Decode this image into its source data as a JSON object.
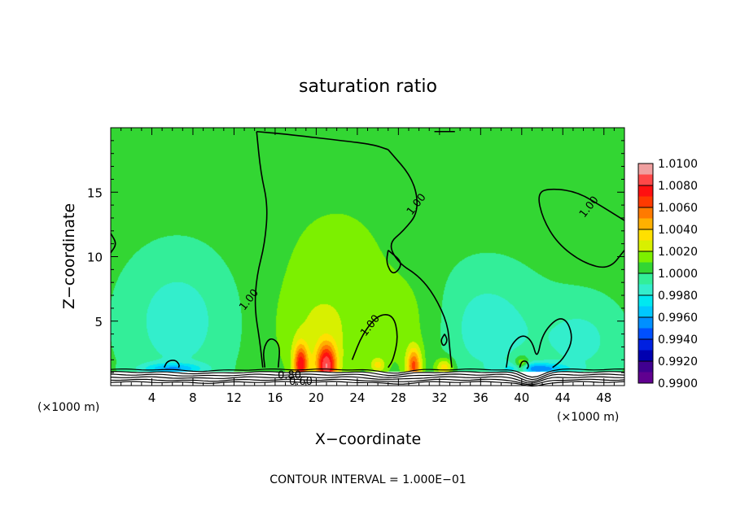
{
  "chart_data": {
    "type": "heatmap",
    "title": "saturation ratio",
    "xlabel": "X−coordinate",
    "ylabel": "Z−coordinate",
    "x_unit": "(×1000 m)",
    "y_unit": "(×1000 m)",
    "xlim": [
      0,
      50
    ],
    "ylim": [
      0,
      20
    ],
    "xticks": [
      "4",
      "8",
      "12",
      "16",
      "20",
      "24",
      "28",
      "32",
      "36",
      "40",
      "44",
      "48"
    ],
    "yticks": [
      "5",
      "10",
      "15"
    ],
    "contour_note": "CONTOUR INTERVAL = 1.000E−01",
    "colorbar": {
      "ticks": [
        "1.0100",
        "1.0080",
        "1.0060",
        "1.0040",
        "1.0020",
        "1.0000",
        "0.9980",
        "0.9960",
        "0.9940",
        "0.9920",
        "0.9900"
      ],
      "bands": [
        {
          "min": 1.009,
          "max": 1.01,
          "color": "#f0a0a0"
        },
        {
          "min": 1.008,
          "max": 1.009,
          "color": "#ff4848"
        },
        {
          "min": 1.007,
          "max": 1.008,
          "color": "#ff1010"
        },
        {
          "min": 1.006,
          "max": 1.007,
          "color": "#ff3a00"
        },
        {
          "min": 1.005,
          "max": 1.006,
          "color": "#ff7a00"
        },
        {
          "min": 1.004,
          "max": 1.005,
          "color": "#ffb000"
        },
        {
          "min": 1.003,
          "max": 1.004,
          "color": "#ffe000"
        },
        {
          "min": 1.002,
          "max": 1.003,
          "color": "#d8f000"
        },
        {
          "min": 1.001,
          "max": 1.002,
          "color": "#7cf000"
        },
        {
          "min": 1.0,
          "max": 1.001,
          "color": "#33d633"
        },
        {
          "min": 0.999,
          "max": 1.0,
          "color": "#33ee99"
        },
        {
          "min": 0.998,
          "max": 0.999,
          "color": "#33eecc"
        },
        {
          "min": 0.997,
          "max": 0.998,
          "color": "#00e8f0"
        },
        {
          "min": 0.996,
          "max": 0.997,
          "color": "#00c8ff"
        },
        {
          "min": 0.995,
          "max": 0.996,
          "color": "#0090ff"
        },
        {
          "min": 0.994,
          "max": 0.995,
          "color": "#0050ff"
        },
        {
          "min": 0.993,
          "max": 0.994,
          "color": "#0020e0"
        },
        {
          "min": 0.992,
          "max": 0.993,
          "color": "#0000b0"
        },
        {
          "min": 0.991,
          "max": 0.992,
          "color": "#400090"
        },
        {
          "min": 0.99,
          "max": 0.991,
          "color": "#600090"
        }
      ]
    },
    "background_value": 1.0005,
    "features": [
      {
        "x": 18.5,
        "z": 1.6,
        "sx": 0.5,
        "sz": 1.1,
        "value": 1.007
      },
      {
        "x": 21.0,
        "z": 1.5,
        "sx": 0.7,
        "sz": 1.2,
        "value": 1.008
      },
      {
        "x": 29.5,
        "z": 1.5,
        "sx": 0.5,
        "sz": 1.0,
        "value": 1.006
      },
      {
        "x": 32.5,
        "z": 1.4,
        "sx": 0.6,
        "sz": 0.5,
        "value": 1.004
      },
      {
        "x": 20.5,
        "z": 4.0,
        "sx": 3.0,
        "sz": 2.8,
        "value": 1.002
      },
      {
        "x": 29.5,
        "z": 4.5,
        "sx": 2.5,
        "sz": 3.0,
        "value": 1.0015
      },
      {
        "x": 22.0,
        "z": 10.0,
        "sx": 4.5,
        "sz": 4.0,
        "value": 1.0012
      },
      {
        "x": 26.0,
        "z": 1.6,
        "sx": 0.5,
        "sz": 0.4,
        "value": 1.003
      },
      {
        "x": 40.0,
        "z": 1.5,
        "sx": 0.5,
        "sz": 0.5,
        "value": 1.004
      },
      {
        "x": 6.5,
        "z": 5.0,
        "sx": 4.0,
        "sz": 4.0,
        "value": 0.9985
      },
      {
        "x": 36.5,
        "z": 4.5,
        "sx": 4.0,
        "sz": 3.5,
        "value": 0.9985
      },
      {
        "x": 46.0,
        "z": 3.5,
        "sx": 3.0,
        "sz": 2.5,
        "value": 0.9988
      },
      {
        "x": 6.0,
        "z": 1.3,
        "sx": 2.0,
        "sz": 0.3,
        "value": 0.997
      },
      {
        "x": 41.5,
        "z": 1.3,
        "sx": 2.0,
        "sz": 0.3,
        "value": 0.996
      }
    ],
    "contours": [
      {
        "label": "1.00",
        "label_pos": [
          13.7,
          6.5
        ],
        "points": [
          [
            14.8,
            1.4
          ],
          [
            14.5,
            3.5
          ],
          [
            14.0,
            6.0
          ],
          [
            14.2,
            8.5
          ],
          [
            15.0,
            11.0
          ],
          [
            15.3,
            14.0
          ],
          [
            14.6,
            16.5
          ],
          [
            14.2,
            19.7
          ]
        ]
      },
      {
        "label": "",
        "points": [
          [
            14.2,
            19.7
          ],
          [
            17.0,
            19.5
          ],
          [
            22.5,
            19.0
          ],
          [
            25.5,
            18.7
          ],
          [
            27.0,
            18.3
          ]
        ]
      },
      {
        "label": "1.00",
        "label_pos": [
          30.0,
          13.9
        ],
        "points": [
          [
            27.0,
            18.3
          ],
          [
            29.5,
            16.0
          ],
          [
            30.0,
            13.5
          ],
          [
            28.5,
            12.0
          ],
          [
            27.0,
            11.0
          ],
          [
            28.0,
            9.5
          ],
          [
            30.0,
            8.5
          ],
          [
            31.5,
            7.0
          ],
          [
            32.8,
            4.8
          ],
          [
            33.0,
            2.8
          ],
          [
            33.2,
            1.4
          ]
        ]
      },
      {
        "label": "",
        "points": [
          [
            31.5,
            19.7
          ],
          [
            33.5,
            19.7
          ]
        ]
      },
      {
        "label": "",
        "points": [
          [
            0.0,
            11.8
          ],
          [
            0.6,
            11.0
          ],
          [
            0.0,
            10.3
          ]
        ]
      },
      {
        "label": "1.00",
        "label_pos": [
          25.5,
          4.5
        ],
        "points": [
          [
            23.5,
            2.0
          ],
          [
            24.5,
            4.0
          ],
          [
            26.0,
            5.5
          ],
          [
            27.5,
            5.5
          ],
          [
            28.0,
            3.8
          ],
          [
            27.5,
            2.0
          ],
          [
            27.0,
            1.4
          ]
        ]
      },
      {
        "label": "",
        "points": [
          [
            27.0,
            10.5
          ],
          [
            28.5,
            9.5
          ],
          [
            27.5,
            8.5
          ],
          [
            26.8,
            9.5
          ],
          [
            27.0,
            10.5
          ]
        ]
      },
      {
        "label": "",
        "points": [
          [
            32.5,
            4.0
          ],
          [
            32.8,
            3.5
          ],
          [
            32.4,
            3.0
          ],
          [
            32.1,
            3.5
          ],
          [
            32.5,
            4.0
          ]
        ]
      },
      {
        "label": "",
        "points": [
          [
            15.0,
            1.4
          ],
          [
            14.8,
            2.8
          ],
          [
            15.5,
            3.8
          ],
          [
            16.5,
            3.2
          ],
          [
            16.3,
            1.4
          ]
        ]
      },
      {
        "label": "1.00",
        "label_pos": [
          46.8,
          13.7
        ],
        "points": [
          [
            50.0,
            10.5
          ],
          [
            48.5,
            9.0
          ],
          [
            46.0,
            9.5
          ],
          [
            43.5,
            11.0
          ],
          [
            42.0,
            13.0
          ],
          [
            41.5,
            15.0
          ],
          [
            43.0,
            15.3
          ],
          [
            45.5,
            15.0
          ],
          [
            48.0,
            13.8
          ],
          [
            50.0,
            12.8
          ]
        ]
      },
      {
        "label": "",
        "points": [
          [
            38.5,
            1.4
          ],
          [
            38.8,
            3.0
          ],
          [
            40.0,
            4.0
          ],
          [
            41.0,
            3.5
          ],
          [
            41.5,
            2.0
          ],
          [
            42.0,
            4.0
          ],
          [
            43.5,
            5.3
          ],
          [
            44.5,
            5.0
          ],
          [
            45.0,
            3.5
          ],
          [
            44.0,
            2.0
          ],
          [
            43.0,
            1.4
          ]
        ]
      },
      {
        "label": "",
        "points": [
          [
            5.2,
            1.4
          ],
          [
            5.5,
            1.9
          ],
          [
            6.3,
            2.0
          ],
          [
            6.7,
            1.6
          ],
          [
            6.6,
            1.4
          ]
        ]
      },
      {
        "label": "",
        "points": [
          [
            39.8,
            1.4
          ],
          [
            40.0,
            1.9
          ],
          [
            40.5,
            1.9
          ],
          [
            40.7,
            1.5
          ],
          [
            40.5,
            1.3
          ]
        ]
      }
    ],
    "ground_contour_labels": [
      {
        "text": "0.80",
        "x": 17.4,
        "z": 0.55
      },
      {
        "text": "0.60",
        "x": 18.5,
        "z": 0.05
      }
    ]
  }
}
